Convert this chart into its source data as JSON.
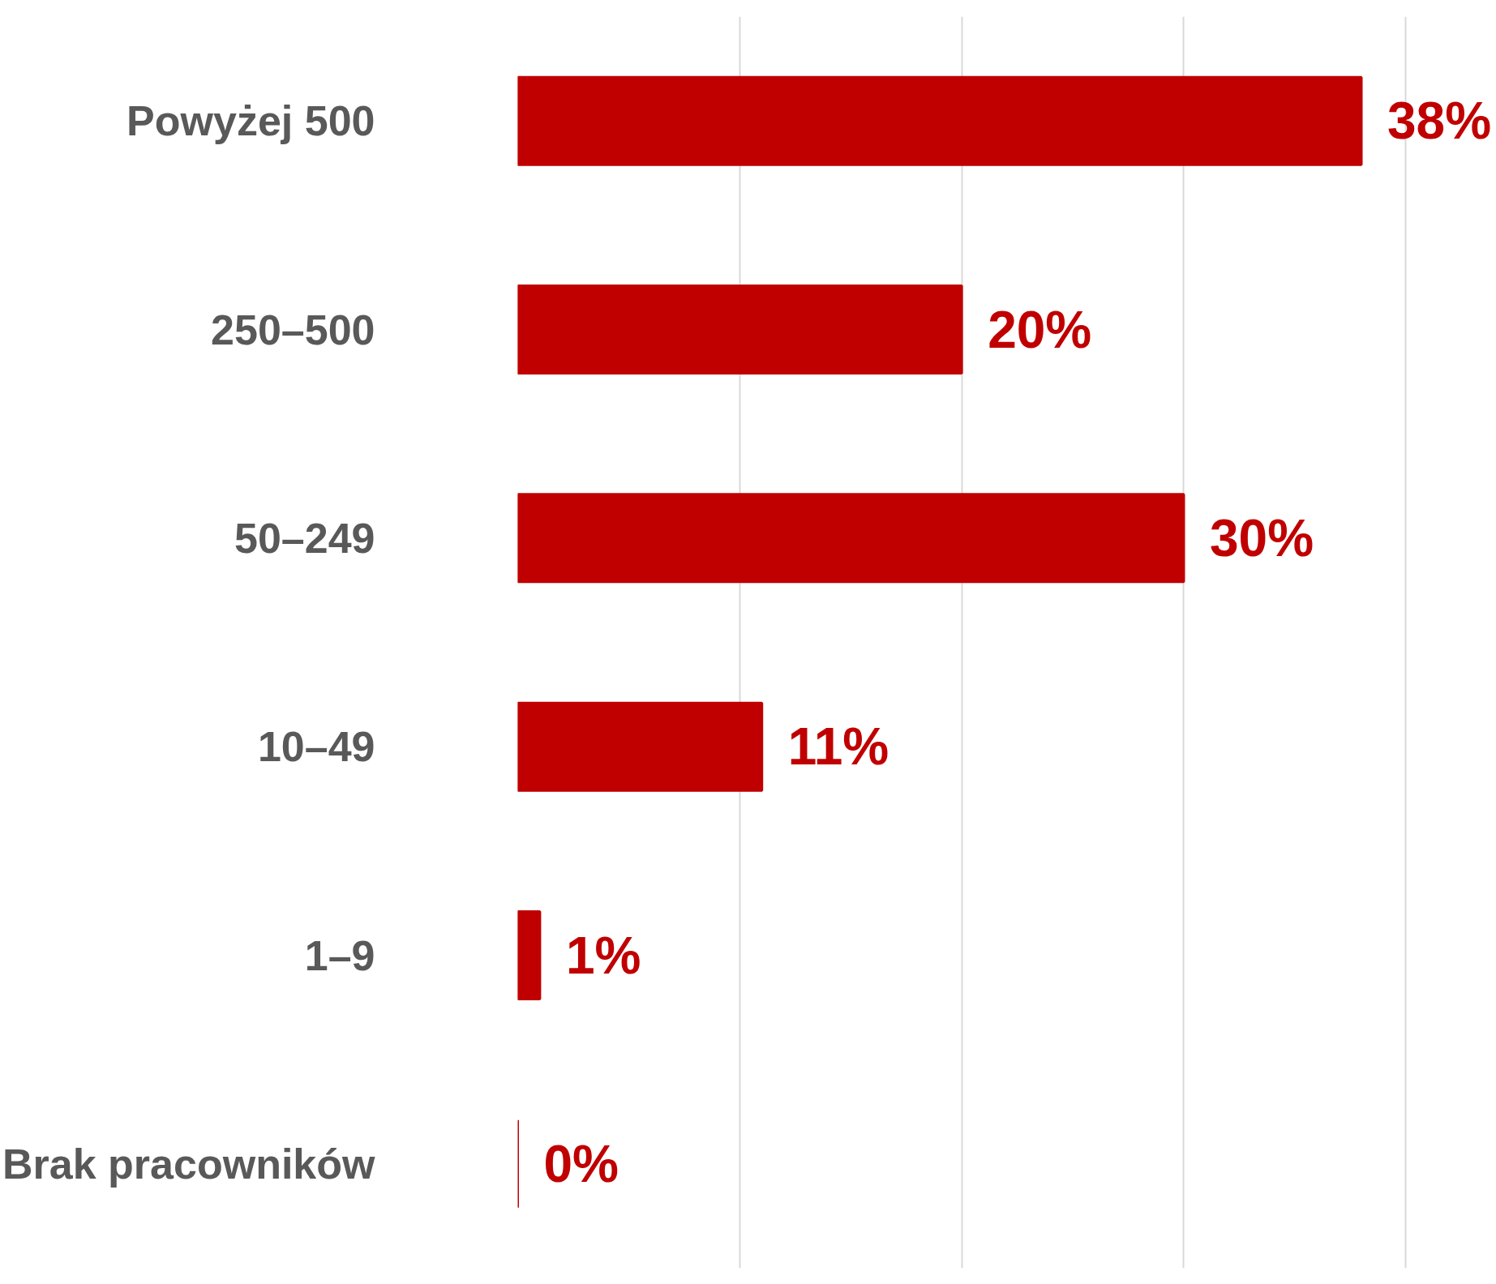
{
  "chart_data": {
    "type": "bar",
    "orientation": "horizontal",
    "categories": [
      "Powyżej 500",
      "250–500",
      "50–249",
      "10–49",
      "1–9",
      "Brak pracowników"
    ],
    "values": [
      38,
      20,
      30,
      11,
      1,
      0
    ],
    "value_labels": [
      "38%",
      "20%",
      "30%",
      "11%",
      "1%",
      "0%"
    ],
    "color": "#c00000",
    "grid": "x",
    "tick_labels": "y"
  }
}
